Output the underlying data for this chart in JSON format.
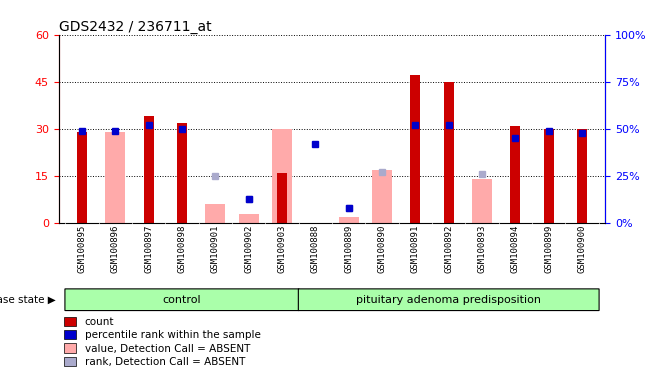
{
  "title": "GDS2432 / 236711_at",
  "samples": [
    "GSM100895",
    "GSM100896",
    "GSM100897",
    "GSM100898",
    "GSM100901",
    "GSM100902",
    "GSM100903",
    "GSM100888",
    "GSM100889",
    "GSM100890",
    "GSM100891",
    "GSM100892",
    "GSM100893",
    "GSM100894",
    "GSM100899",
    "GSM100900"
  ],
  "count_values": [
    29,
    0,
    34,
    32,
    0,
    0,
    16,
    0,
    0,
    0,
    47,
    45,
    0,
    31,
    30,
    30
  ],
  "percentile_values": [
    49,
    49,
    52,
    50,
    0,
    13,
    0,
    42,
    8,
    0,
    52,
    52,
    0,
    45,
    49,
    48
  ],
  "absent_value_values": [
    0,
    29,
    0,
    0,
    6,
    3,
    30,
    0,
    2,
    17,
    0,
    0,
    14,
    0,
    0,
    0
  ],
  "absent_rank_values": [
    0,
    0,
    0,
    0,
    25,
    13,
    0,
    0,
    8,
    27,
    0,
    0,
    26,
    0,
    0,
    0
  ],
  "control_count": 7,
  "pituitary_count": 9,
  "ylim_left": [
    0,
    60
  ],
  "ylim_right": [
    0,
    100
  ],
  "yticks_left": [
    0,
    15,
    30,
    45,
    60
  ],
  "yticks_right": [
    0,
    25,
    50,
    75,
    100
  ],
  "color_count": "#cc0000",
  "color_percentile": "#0000cc",
  "color_absent_value": "#ffaaaa",
  "color_absent_rank": "#aaaacc",
  "bar_width": 0.6,
  "disease_state_label": "disease state",
  "control_label": "control",
  "pituitary_label": "pituitary adenoma predisposition",
  "legend_items": [
    "count",
    "percentile rank within the sample",
    "value, Detection Call = ABSENT",
    "rank, Detection Call = ABSENT"
  ],
  "control_color": "#aaffaa",
  "pituitary_color": "#aaffaa"
}
